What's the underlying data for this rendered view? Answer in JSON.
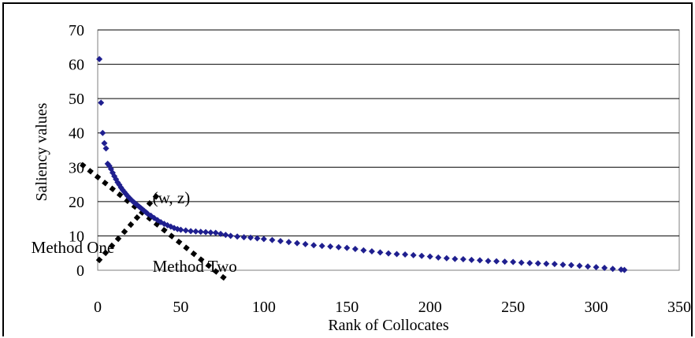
{
  "chart_data": {
    "type": "scatter",
    "title": "",
    "xlabel": "Rank of Collocates",
    "ylabel": "Saliency values",
    "xlim": [
      0,
      350
    ],
    "ylim": [
      0,
      70
    ],
    "x_ticks": [
      "0",
      "50",
      "100",
      "150",
      "200",
      "250",
      "300",
      "350"
    ],
    "y_ticks": [
      "0",
      "10",
      "20",
      "30",
      "40",
      "50",
      "60",
      "70"
    ],
    "grid": "horizontal",
    "legend": "none",
    "marker_color": "#1f1f8f",
    "points": [
      [
        1,
        61.5
      ],
      [
        2,
        48.8
      ],
      [
        3,
        40
      ],
      [
        4,
        37
      ],
      [
        5,
        35.5
      ],
      [
        6,
        31
      ],
      [
        7,
        30.4
      ],
      [
        8,
        29.5
      ],
      [
        9,
        28.4
      ],
      [
        10,
        27.4
      ],
      [
        11,
        26.5
      ],
      [
        12,
        25.6
      ],
      [
        13,
        24.9
      ],
      [
        14,
        24.1
      ],
      [
        15,
        23.4
      ],
      [
        16,
        22.8
      ],
      [
        17,
        22.2
      ],
      [
        18,
        21.6
      ],
      [
        19,
        21.1
      ],
      [
        20,
        20.6
      ],
      [
        21,
        20.1
      ],
      [
        22,
        19.7
      ],
      [
        23,
        19.3
      ],
      [
        24,
        18.9
      ],
      [
        25,
        18.5
      ],
      [
        26,
        18.1
      ],
      [
        27,
        17.7
      ],
      [
        28,
        17.3
      ],
      [
        29,
        16.9
      ],
      [
        30,
        16.5
      ],
      [
        32,
        15.9
      ],
      [
        34,
        15.2
      ],
      [
        36,
        14.6
      ],
      [
        38,
        14
      ],
      [
        40,
        13.5
      ],
      [
        42,
        13.1
      ],
      [
        44,
        12.7
      ],
      [
        46,
        12.3
      ],
      [
        48,
        12
      ],
      [
        50,
        11.8
      ],
      [
        53,
        11.6
      ],
      [
        56,
        11.4
      ],
      [
        59,
        11.3
      ],
      [
        62,
        11.2
      ],
      [
        65,
        11.1
      ],
      [
        68,
        11
      ],
      [
        71,
        10.9
      ],
      [
        74,
        10.6
      ],
      [
        77,
        10.3
      ],
      [
        80,
        10
      ],
      [
        84,
        9.8
      ],
      [
        88,
        9.6
      ],
      [
        92,
        9.5
      ],
      [
        96,
        9.3
      ],
      [
        100,
        9.1
      ],
      [
        105,
        8.8
      ],
      [
        110,
        8.5
      ],
      [
        115,
        8.2
      ],
      [
        120,
        7.9
      ],
      [
        125,
        7.6
      ],
      [
        130,
        7.3
      ],
      [
        135,
        7.1
      ],
      [
        140,
        6.9
      ],
      [
        145,
        6.7
      ],
      [
        150,
        6.5
      ],
      [
        155,
        6.2
      ],
      [
        160,
        5.8
      ],
      [
        165,
        5.5
      ],
      [
        170,
        5.2
      ],
      [
        175,
        4.9
      ],
      [
        180,
        4.7
      ],
      [
        185,
        4.6
      ],
      [
        190,
        4.4
      ],
      [
        195,
        4.2
      ],
      [
        200,
        4
      ],
      [
        205,
        3.7
      ],
      [
        210,
        3.5
      ],
      [
        215,
        3.3
      ],
      [
        220,
        3.2
      ],
      [
        225,
        3
      ],
      [
        230,
        2.9
      ],
      [
        235,
        2.7
      ],
      [
        240,
        2.6
      ],
      [
        245,
        2.5
      ],
      [
        250,
        2.4
      ],
      [
        255,
        2.2
      ],
      [
        260,
        2.1
      ],
      [
        265,
        2
      ],
      [
        270,
        1.9
      ],
      [
        275,
        1.8
      ],
      [
        280,
        1.6
      ],
      [
        285,
        1.5
      ],
      [
        290,
        1.3
      ],
      [
        295,
        1.1
      ],
      [
        300,
        0.9
      ],
      [
        305,
        0.7
      ],
      [
        310,
        0.4
      ],
      [
        315,
        0.2
      ],
      [
        317,
        0.1
      ]
    ],
    "lines": [
      {
        "label": "Method One",
        "from": [
          0,
          2.5
        ],
        "to": [
          36,
          22
        ]
      },
      {
        "label": "Method Two",
        "from": [
          -10,
          31
        ],
        "to": [
          78,
          -3
        ]
      }
    ],
    "annotations": [
      {
        "text": "(w, z)",
        "x": 33,
        "y": 19.5
      },
      {
        "text": "Method One",
        "x": -40,
        "y": 5
      },
      {
        "text": "Method Two",
        "x": 33,
        "y": -0.5
      }
    ]
  }
}
